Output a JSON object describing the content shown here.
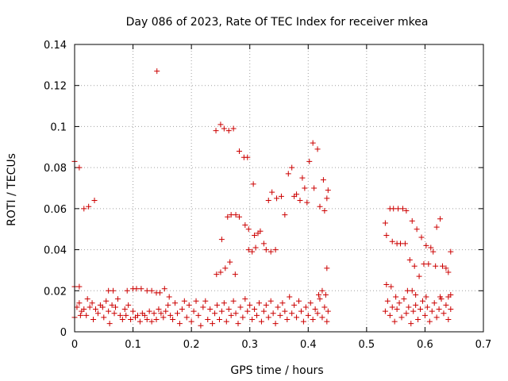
{
  "chart_data": {
    "type": "scatter",
    "title": "Day 086 of 2023, Rate Of TEC Index for receiver mkea",
    "xlabel": "GPS time / hours",
    "ylabel": "ROTI / TECUs",
    "xlim": [
      0,
      0.7
    ],
    "ylim": [
      0,
      0.14
    ],
    "grid": true,
    "x_ticks": [
      0,
      0.1,
      0.2,
      0.3,
      0.4,
      0.5,
      0.6,
      0.7
    ],
    "x_tick_labels": [
      "0",
      "0.1",
      "0.2",
      "0.3",
      "0.4",
      "0.5",
      "0.6",
      "0.7"
    ],
    "y_ticks": [
      0,
      0.02,
      0.04,
      0.06,
      0.08,
      0.1,
      0.12,
      0.14
    ],
    "y_tick_labels": [
      "0",
      "0.02",
      "0.04",
      "0.06",
      "0.08",
      "0.1",
      "0.12",
      "0.14"
    ],
    "marker": "+",
    "series": [
      {
        "name": "ROTI",
        "color": "#cc0000",
        "points": [
          [
            0.0,
            0.083
          ],
          [
            0.008,
            0.08
          ],
          [
            0.016,
            0.06
          ],
          [
            0.024,
            0.061
          ],
          [
            0.034,
            0.064
          ],
          [
            0.141,
            0.127
          ],
          [
            0.242,
            0.098
          ],
          [
            0.25,
            0.101
          ],
          [
            0.256,
            0.099
          ],
          [
            0.264,
            0.098
          ],
          [
            0.272,
            0.099
          ],
          [
            0.282,
            0.088
          ],
          [
            0.29,
            0.085
          ],
          [
            0.296,
            0.085
          ],
          [
            0.306,
            0.072
          ],
          [
            0.252,
            0.045
          ],
          [
            0.262,
            0.056
          ],
          [
            0.268,
            0.057
          ],
          [
            0.276,
            0.057
          ],
          [
            0.282,
            0.056
          ],
          [
            0.292,
            0.052
          ],
          [
            0.298,
            0.05
          ],
          [
            0.308,
            0.047
          ],
          [
            0.314,
            0.048
          ],
          [
            0.318,
            0.049
          ],
          [
            0.324,
            0.043
          ],
          [
            0.332,
            0.064
          ],
          [
            0.338,
            0.068
          ],
          [
            0.346,
            0.065
          ],
          [
            0.354,
            0.066
          ],
          [
            0.36,
            0.057
          ],
          [
            0.366,
            0.077
          ],
          [
            0.372,
            0.08
          ],
          [
            0.376,
            0.066
          ],
          [
            0.38,
            0.067
          ],
          [
            0.386,
            0.064
          ],
          [
            0.39,
            0.075
          ],
          [
            0.394,
            0.07
          ],
          [
            0.398,
            0.063
          ],
          [
            0.402,
            0.083
          ],
          [
            0.408,
            0.092
          ],
          [
            0.41,
            0.07
          ],
          [
            0.416,
            0.089
          ],
          [
            0.42,
            0.061
          ],
          [
            0.426,
            0.074
          ],
          [
            0.428,
            0.059
          ],
          [
            0.432,
            0.065
          ],
          [
            0.434,
            0.069
          ],
          [
            0.243,
            0.028
          ],
          [
            0.25,
            0.029
          ],
          [
            0.258,
            0.031
          ],
          [
            0.266,
            0.034
          ],
          [
            0.275,
            0.028
          ],
          [
            0.298,
            0.04
          ],
          [
            0.304,
            0.039
          ],
          [
            0.31,
            0.041
          ],
          [
            0.328,
            0.04
          ],
          [
            0.336,
            0.039
          ],
          [
            0.344,
            0.04
          ],
          [
            0.432,
            0.031
          ],
          [
            0.0,
            0.022
          ],
          [
            0.008,
            0.022
          ],
          [
            0.058,
            0.02
          ],
          [
            0.066,
            0.02
          ],
          [
            0.09,
            0.02
          ],
          [
            0.1,
            0.021
          ],
          [
            0.106,
            0.021
          ],
          [
            0.114,
            0.021
          ],
          [
            0.124,
            0.02
          ],
          [
            0.132,
            0.02
          ],
          [
            0.14,
            0.019
          ],
          [
            0.146,
            0.019
          ],
          [
            0.154,
            0.021
          ],
          [
            0.162,
            0.017
          ],
          [
            0.418,
            0.018
          ],
          [
            0.424,
            0.02
          ],
          [
            0.43,
            0.018
          ],
          [
            0.532,
            0.053
          ],
          [
            0.534,
            0.047
          ],
          [
            0.54,
            0.06
          ],
          [
            0.546,
            0.06
          ],
          [
            0.554,
            0.06
          ],
          [
            0.562,
            0.06
          ],
          [
            0.568,
            0.059
          ],
          [
            0.544,
            0.044
          ],
          [
            0.552,
            0.043
          ],
          [
            0.558,
            0.043
          ],
          [
            0.566,
            0.043
          ],
          [
            0.574,
            0.035
          ],
          [
            0.578,
            0.054
          ],
          [
            0.582,
            0.032
          ],
          [
            0.586,
            0.05
          ],
          [
            0.59,
            0.027
          ],
          [
            0.594,
            0.046
          ],
          [
            0.598,
            0.033
          ],
          [
            0.602,
            0.042
          ],
          [
            0.606,
            0.033
          ],
          [
            0.61,
            0.041
          ],
          [
            0.614,
            0.039
          ],
          [
            0.618,
            0.032
          ],
          [
            0.62,
            0.051
          ],
          [
            0.626,
            0.055
          ],
          [
            0.63,
            0.032
          ],
          [
            0.636,
            0.031
          ],
          [
            0.64,
            0.029
          ],
          [
            0.644,
            0.039
          ],
          [
            0.534,
            0.023
          ],
          [
            0.542,
            0.022
          ],
          [
            0.55,
            0.017
          ],
          [
            0.57,
            0.02
          ],
          [
            0.578,
            0.02
          ],
          [
            0.584,
            0.018
          ],
          [
            0.602,
            0.017
          ],
          [
            0.626,
            0.017
          ],
          [
            0.64,
            0.017
          ],
          [
            0.644,
            0.018
          ],
          [
            0.0,
            0.007
          ],
          [
            0.004,
            0.012
          ],
          [
            0.008,
            0.014
          ],
          [
            0.01,
            0.008
          ],
          [
            0.012,
            0.01
          ],
          [
            0.016,
            0.011
          ],
          [
            0.02,
            0.008
          ],
          [
            0.022,
            0.016
          ],
          [
            0.026,
            0.012
          ],
          [
            0.03,
            0.014
          ],
          [
            0.032,
            0.006
          ],
          [
            0.036,
            0.011
          ],
          [
            0.04,
            0.009
          ],
          [
            0.044,
            0.013
          ],
          [
            0.048,
            0.012
          ],
          [
            0.05,
            0.007
          ],
          [
            0.054,
            0.015
          ],
          [
            0.058,
            0.01
          ],
          [
            0.06,
            0.004
          ],
          [
            0.064,
            0.013
          ],
          [
            0.068,
            0.009
          ],
          [
            0.07,
            0.012
          ],
          [
            0.074,
            0.016
          ],
          [
            0.078,
            0.008
          ],
          [
            0.082,
            0.006
          ],
          [
            0.086,
            0.011
          ],
          [
            0.088,
            0.008
          ],
          [
            0.092,
            0.013
          ],
          [
            0.096,
            0.006
          ],
          [
            0.1,
            0.01
          ],
          [
            0.104,
            0.007
          ],
          [
            0.108,
            0.008
          ],
          [
            0.112,
            0.005
          ],
          [
            0.116,
            0.009
          ],
          [
            0.12,
            0.008
          ],
          [
            0.124,
            0.006
          ],
          [
            0.128,
            0.01
          ],
          [
            0.132,
            0.005
          ],
          [
            0.136,
            0.009
          ],
          [
            0.14,
            0.006
          ],
          [
            0.144,
            0.011
          ],
          [
            0.148,
            0.009
          ],
          [
            0.152,
            0.007
          ],
          [
            0.156,
            0.01
          ],
          [
            0.16,
            0.013
          ],
          [
            0.164,
            0.008
          ],
          [
            0.168,
            0.006
          ],
          [
            0.172,
            0.014
          ],
          [
            0.176,
            0.009
          ],
          [
            0.18,
            0.004
          ],
          [
            0.184,
            0.011
          ],
          [
            0.188,
            0.015
          ],
          [
            0.192,
            0.007
          ],
          [
            0.196,
            0.013
          ],
          [
            0.2,
            0.005
          ],
          [
            0.204,
            0.01
          ],
          [
            0.208,
            0.015
          ],
          [
            0.212,
            0.008
          ],
          [
            0.216,
            0.003
          ],
          [
            0.22,
            0.012
          ],
          [
            0.224,
            0.015
          ],
          [
            0.228,
            0.006
          ],
          [
            0.232,
            0.011
          ],
          [
            0.236,
            0.004
          ],
          [
            0.24,
            0.009
          ],
          [
            0.244,
            0.013
          ],
          [
            0.248,
            0.006
          ],
          [
            0.252,
            0.01
          ],
          [
            0.256,
            0.014
          ],
          [
            0.26,
            0.005
          ],
          [
            0.264,
            0.011
          ],
          [
            0.268,
            0.008
          ],
          [
            0.272,
            0.015
          ],
          [
            0.276,
            0.009
          ],
          [
            0.28,
            0.004
          ],
          [
            0.284,
            0.012
          ],
          [
            0.288,
            0.007
          ],
          [
            0.292,
            0.016
          ],
          [
            0.296,
            0.01
          ],
          [
            0.3,
            0.013
          ],
          [
            0.304,
            0.006
          ],
          [
            0.308,
            0.011
          ],
          [
            0.312,
            0.008
          ],
          [
            0.316,
            0.014
          ],
          [
            0.32,
            0.005
          ],
          [
            0.324,
            0.01
          ],
          [
            0.328,
            0.013
          ],
          [
            0.332,
            0.007
          ],
          [
            0.336,
            0.015
          ],
          [
            0.34,
            0.009
          ],
          [
            0.344,
            0.004
          ],
          [
            0.348,
            0.012
          ],
          [
            0.352,
            0.008
          ],
          [
            0.356,
            0.014
          ],
          [
            0.36,
            0.01
          ],
          [
            0.364,
            0.006
          ],
          [
            0.368,
            0.017
          ],
          [
            0.372,
            0.009
          ],
          [
            0.376,
            0.013
          ],
          [
            0.38,
            0.007
          ],
          [
            0.384,
            0.015
          ],
          [
            0.388,
            0.01
          ],
          [
            0.392,
            0.005
          ],
          [
            0.396,
            0.012
          ],
          [
            0.4,
            0.008
          ],
          [
            0.404,
            0.014
          ],
          [
            0.408,
            0.006
          ],
          [
            0.412,
            0.011
          ],
          [
            0.416,
            0.009
          ],
          [
            0.42,
            0.016
          ],
          [
            0.424,
            0.007
          ],
          [
            0.428,
            0.012
          ],
          [
            0.432,
            0.005
          ],
          [
            0.434,
            0.01
          ],
          [
            0.532,
            0.01
          ],
          [
            0.536,
            0.015
          ],
          [
            0.54,
            0.008
          ],
          [
            0.544,
            0.012
          ],
          [
            0.548,
            0.005
          ],
          [
            0.552,
            0.011
          ],
          [
            0.556,
            0.014
          ],
          [
            0.56,
            0.007
          ],
          [
            0.564,
            0.016
          ],
          [
            0.568,
            0.009
          ],
          [
            0.572,
            0.012
          ],
          [
            0.576,
            0.004
          ],
          [
            0.58,
            0.01
          ],
          [
            0.584,
            0.013
          ],
          [
            0.588,
            0.006
          ],
          [
            0.592,
            0.011
          ],
          [
            0.596,
            0.015
          ],
          [
            0.6,
            0.008
          ],
          [
            0.604,
            0.012
          ],
          [
            0.608,
            0.005
          ],
          [
            0.612,
            0.01
          ],
          [
            0.616,
            0.014
          ],
          [
            0.62,
            0.007
          ],
          [
            0.624,
            0.011
          ],
          [
            0.628,
            0.016
          ],
          [
            0.632,
            0.009
          ],
          [
            0.636,
            0.013
          ],
          [
            0.64,
            0.006
          ],
          [
            0.644,
            0.011
          ]
        ]
      }
    ]
  }
}
